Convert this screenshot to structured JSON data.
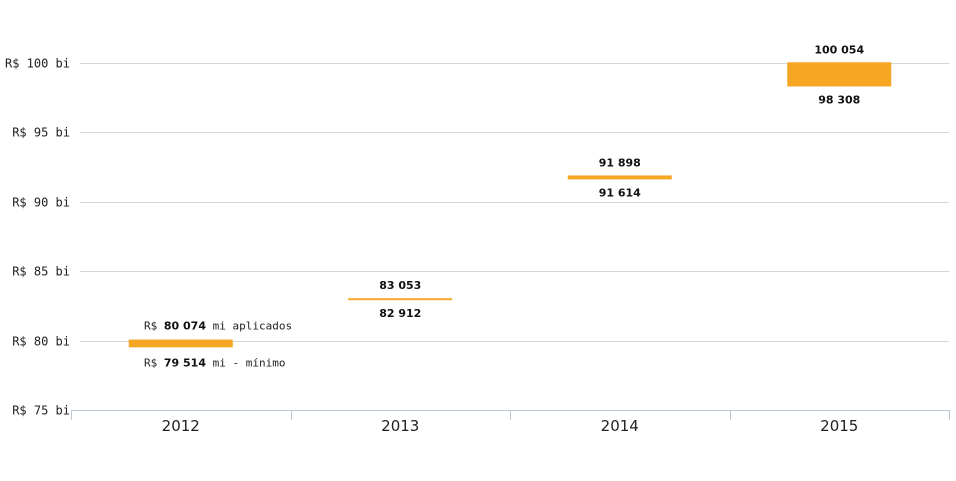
{
  "chart_data": {
    "type": "bar",
    "categories": [
      "2012",
      "2013",
      "2014",
      "2015"
    ],
    "series": [
      {
        "name": "aplicados",
        "values": [
          80074,
          83053,
          91898,
          100054
        ]
      },
      {
        "name": "mínimo",
        "values": [
          79514,
          82912,
          91614,
          98308
        ]
      }
    ],
    "value_labels_top": [
      "80 074",
      "83 053",
      "91 898",
      "100 054"
    ],
    "value_labels_bottom": [
      "79 514",
      "82 912",
      "91 614",
      "98 308"
    ],
    "first_bar_annotation": {
      "top_prefix": "R$",
      "top_suffix": "mi aplicados",
      "bottom_prefix": "R$",
      "bottom_suffix": "mi - mínimo"
    },
    "yticks": [
      75000,
      80000,
      85000,
      90000,
      95000,
      100000
    ],
    "ytick_labels": [
      "R$ 75 bi",
      "R$ 80 bi",
      "R$ 85 bi",
      "R$ 90 bi",
      "R$ 95 bi",
      "R$ 100 bi"
    ],
    "ylim": [
      75000,
      100000
    ],
    "title": "",
    "xlabel": "",
    "ylabel": "",
    "grid": true,
    "colors": {
      "bar": "#F5A623",
      "grid": "#d6d6d6",
      "axis": "#b9c8d6"
    }
  }
}
